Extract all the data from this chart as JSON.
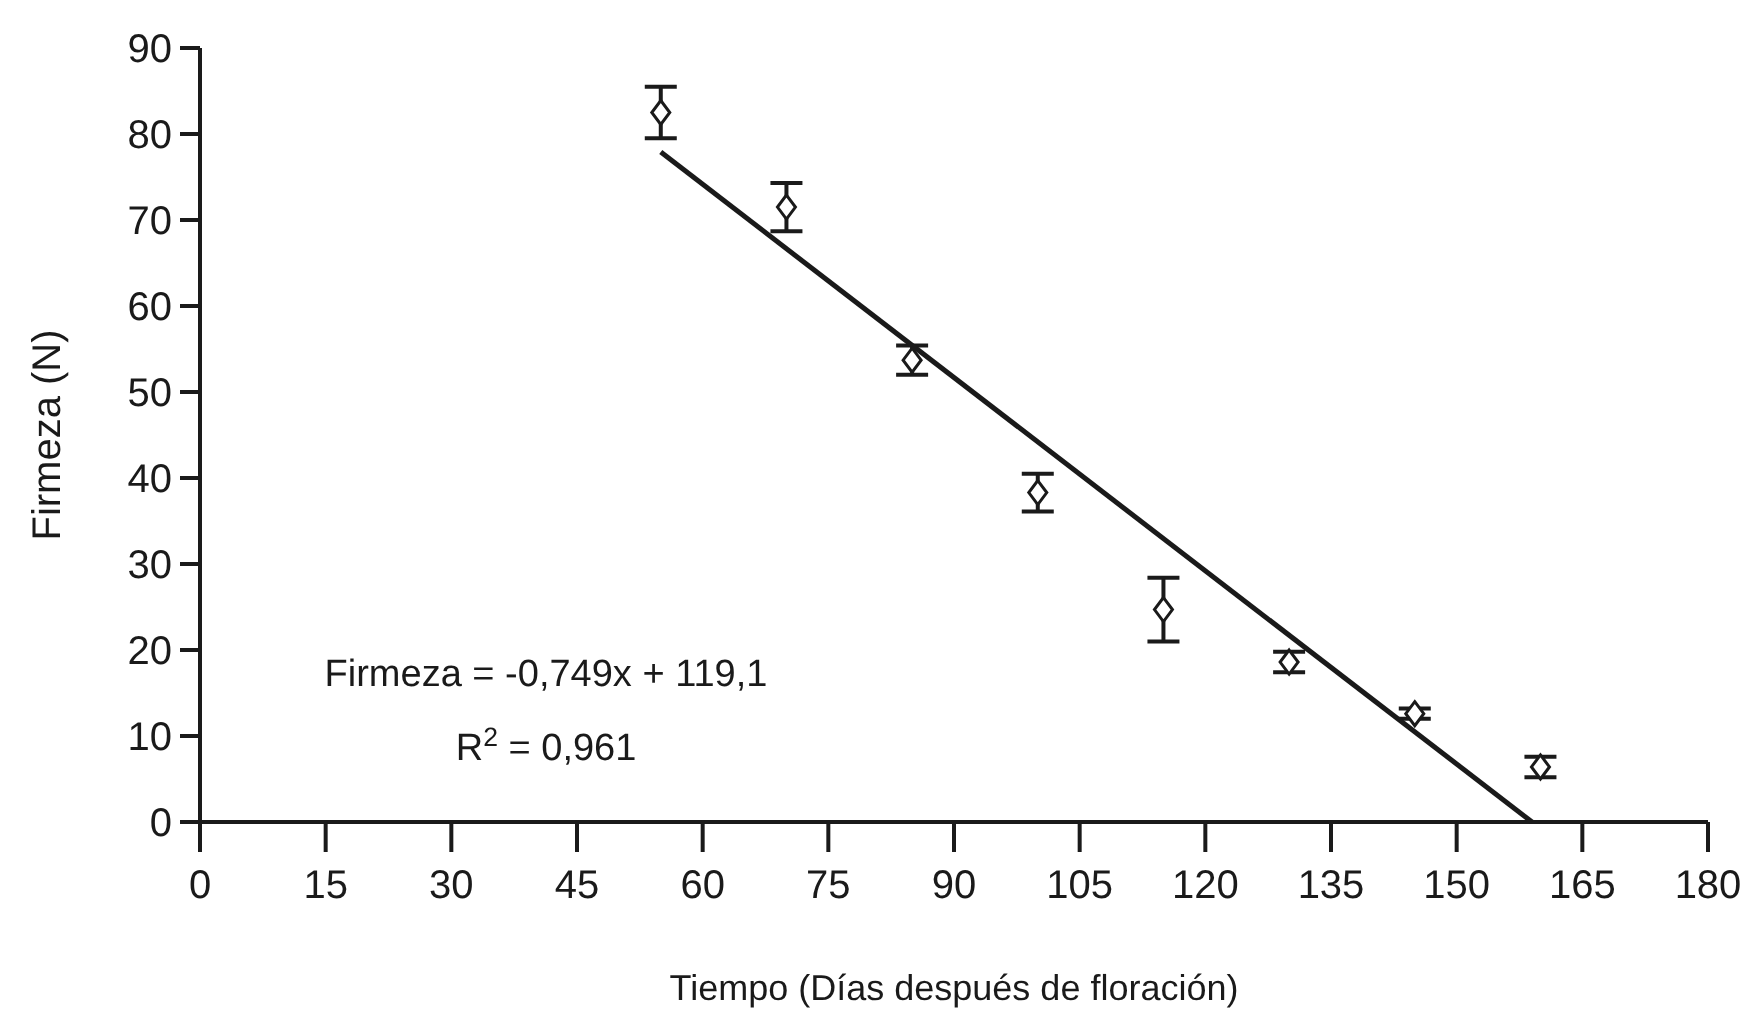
{
  "chart_data": {
    "type": "scatter",
    "xlabel": "Tiempo (Días después de floración)",
    "ylabel": "Firmeza (N)",
    "xlim": [
      0,
      180
    ],
    "xticks": [
      0,
      15,
      30,
      45,
      60,
      75,
      90,
      105,
      120,
      135,
      150,
      165,
      180
    ],
    "ylim": [
      0,
      90
    ],
    "yticks": [
      0,
      10,
      20,
      30,
      40,
      50,
      60,
      70,
      80,
      90
    ],
    "grid": false,
    "series": [
      {
        "color": "#1a1a1a",
        "marker": "diamond",
        "x": [
          55,
          70,
          85,
          100,
          115,
          130,
          145,
          160
        ],
        "values": [
          82.5,
          71.5,
          53.7,
          38.3,
          24.7,
          18.6,
          12.6,
          6.4
        ],
        "errors": [
          3,
          2.8,
          1.7,
          2.2,
          3.7,
          1.2,
          0.6,
          1.2
        ]
      },
      {
        "type": "line",
        "color": "#1a1a1a",
        "marker": "none",
        "line_style": "solid",
        "x": [
          55,
          159
        ],
        "values": [
          77.9,
          0
        ]
      }
    ],
    "annotations": [
      "Firmeza = -0,749x + 119,1",
      "R$^{2}$ = 0,961"
    ]
  }
}
